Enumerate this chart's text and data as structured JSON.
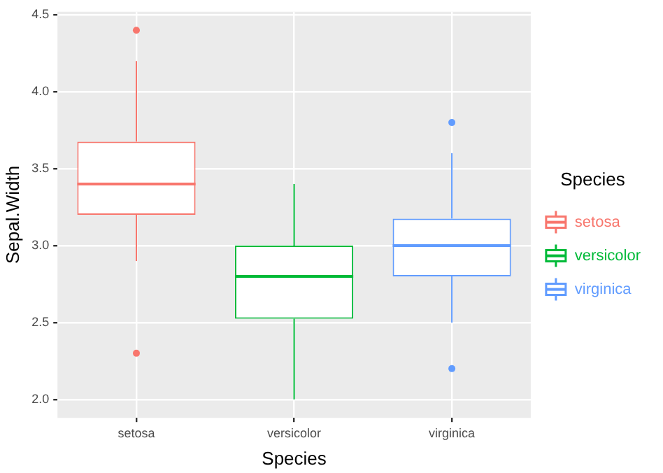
{
  "chart_data": {
    "type": "box",
    "xlabel": "Species",
    "ylabel": "Sepal.Width",
    "legend_title": "Species",
    "legend": "right",
    "grid": true,
    "categories": [
      "setosa",
      "versicolor",
      "virginica"
    ],
    "series": [
      {
        "name": "setosa",
        "color": "#f8766d",
        "boxes": [
          {
            "low": 2.9,
            "q1": 3.2,
            "median": 3.4,
            "q3": 3.675,
            "high": 4.2,
            "outliers": [
              4.4,
              2.3
            ]
          },
          null,
          null
        ]
      },
      {
        "name": "versicolor",
        "color": "#00ba38",
        "boxes": [
          null,
          {
            "low": 2.0,
            "q1": 2.525,
            "median": 2.8,
            "q3": 3.0,
            "high": 3.4
          },
          null
        ]
      },
      {
        "name": "virginica",
        "color": "#619cff",
        "boxes": [
          null,
          null,
          {
            "low": 2.5,
            "q1": 2.8,
            "median": 3.0,
            "q3": 3.175,
            "high": 3.6,
            "outliers": [
              3.8,
              2.2
            ]
          }
        ]
      }
    ],
    "ylim": [
      1.88,
      4.52
    ],
    "yticks": [
      {
        "value": 2,
        "label": "2.0"
      },
      {
        "value": 2.5,
        "label": "2.5"
      },
      {
        "value": 3,
        "label": "3.0"
      },
      {
        "value": 3.5,
        "label": "3.5"
      },
      {
        "value": 4,
        "label": "4.0"
      },
      {
        "value": 4.5,
        "label": "4.5"
      }
    ]
  }
}
